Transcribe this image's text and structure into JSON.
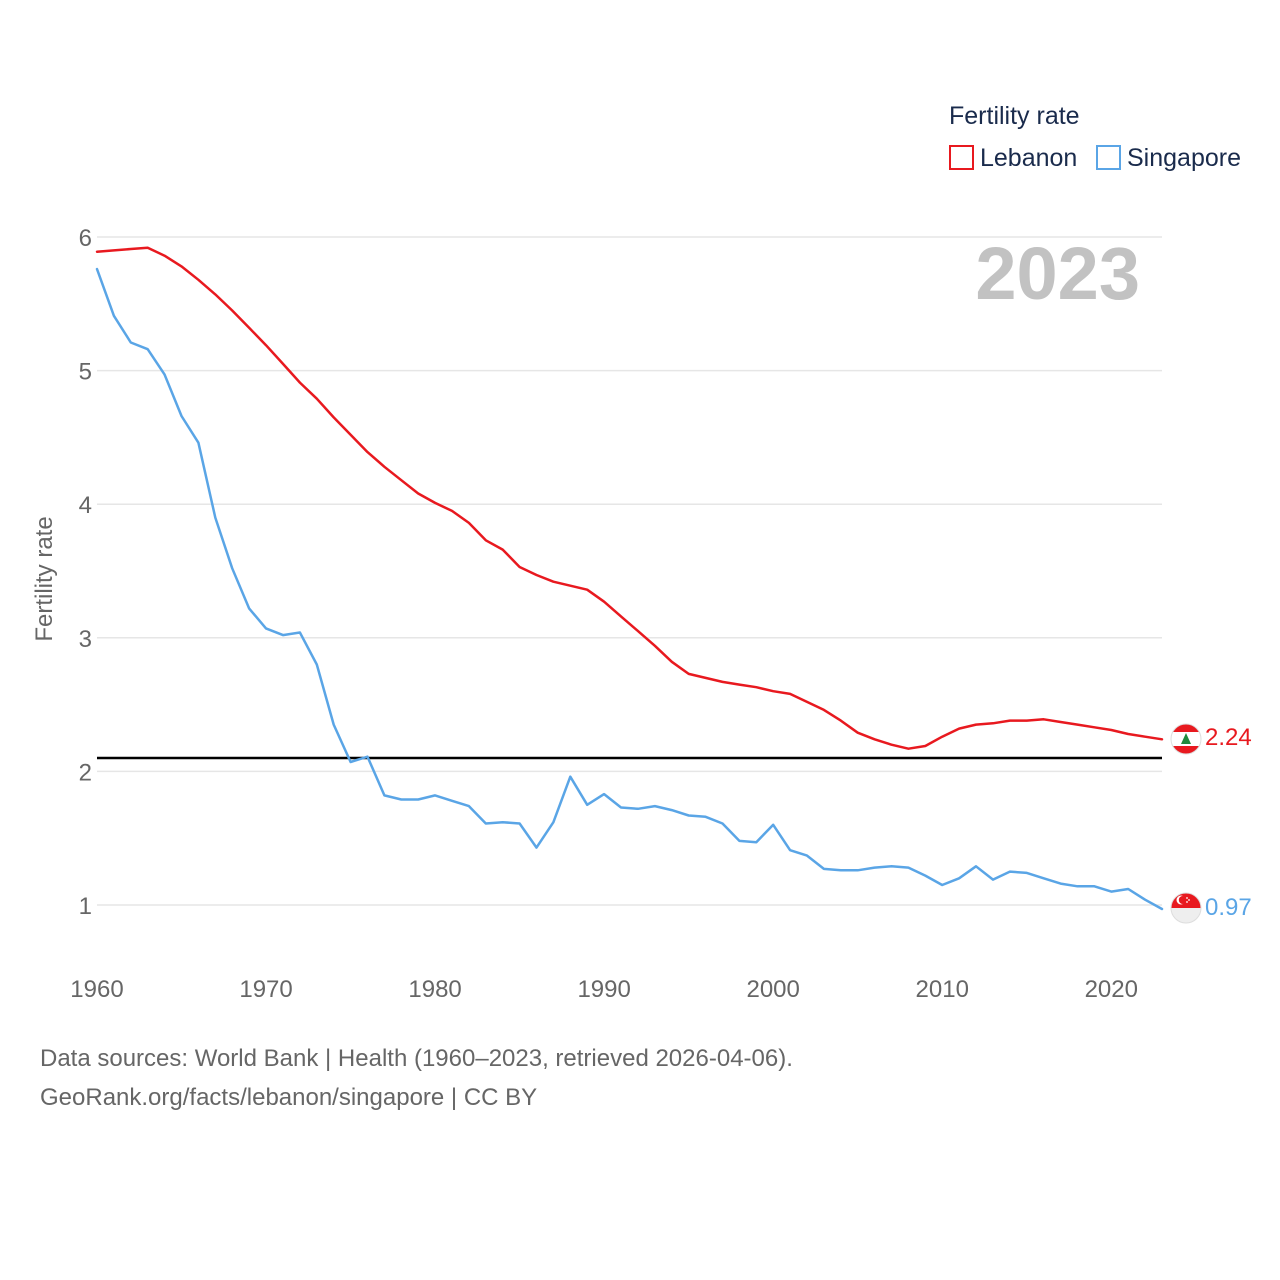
{
  "chart_data": {
    "type": "line",
    "title": "Fertility rate",
    "ylabel": "Fertility rate",
    "xlabel": "",
    "year_label": "2023",
    "xlim": [
      1960,
      2023
    ],
    "ylim": [
      0.5,
      6.1
    ],
    "x_ticks": [
      1960,
      1970,
      1980,
      1990,
      2000,
      2010,
      2020
    ],
    "y_ticks": [
      1,
      2,
      3,
      4,
      5,
      6
    ],
    "reference_line": 2.1,
    "x": [
      1960,
      1961,
      1962,
      1963,
      1964,
      1965,
      1966,
      1967,
      1968,
      1969,
      1970,
      1971,
      1972,
      1973,
      1974,
      1975,
      1976,
      1977,
      1978,
      1979,
      1980,
      1981,
      1982,
      1983,
      1984,
      1985,
      1986,
      1987,
      1988,
      1989,
      1990,
      1991,
      1992,
      1993,
      1994,
      1995,
      1996,
      1997,
      1998,
      1999,
      2000,
      2001,
      2002,
      2003,
      2004,
      2005,
      2006,
      2007,
      2008,
      2009,
      2010,
      2011,
      2012,
      2013,
      2014,
      2015,
      2016,
      2017,
      2018,
      2019,
      2020,
      2021,
      2022,
      2023
    ],
    "series": [
      {
        "name": "Lebanon",
        "color": "#e8191f",
        "end_label": "2.24",
        "values": [
          5.89,
          5.9,
          5.91,
          5.92,
          5.86,
          5.78,
          5.68,
          5.57,
          5.45,
          5.32,
          5.19,
          5.05,
          4.91,
          4.79,
          4.65,
          4.52,
          4.39,
          4.28,
          4.18,
          4.08,
          4.01,
          3.95,
          3.86,
          3.73,
          3.66,
          3.53,
          3.47,
          3.42,
          3.39,
          3.36,
          3.27,
          3.16,
          3.05,
          2.94,
          2.82,
          2.73,
          2.7,
          2.67,
          2.65,
          2.63,
          2.6,
          2.58,
          2.52,
          2.46,
          2.38,
          2.29,
          2.24,
          2.2,
          2.17,
          2.19,
          2.26,
          2.32,
          2.35,
          2.36,
          2.38,
          2.38,
          2.39,
          2.37,
          2.35,
          2.33,
          2.31,
          2.28,
          2.26,
          2.24
        ]
      },
      {
        "name": "Singapore",
        "color": "#5aa5e6",
        "end_label": "0.97",
        "values": [
          5.76,
          5.41,
          5.21,
          5.16,
          4.97,
          4.66,
          4.46,
          3.9,
          3.52,
          3.22,
          3.07,
          3.02,
          3.04,
          2.8,
          2.35,
          2.07,
          2.11,
          1.82,
          1.79,
          1.79,
          1.82,
          1.78,
          1.74,
          1.61,
          1.62,
          1.61,
          1.43,
          1.62,
          1.96,
          1.75,
          1.83,
          1.73,
          1.72,
          1.74,
          1.71,
          1.67,
          1.66,
          1.61,
          1.48,
          1.47,
          1.6,
          1.41,
          1.37,
          1.27,
          1.26,
          1.26,
          1.28,
          1.29,
          1.28,
          1.22,
          1.15,
          1.2,
          1.29,
          1.19,
          1.25,
          1.24,
          1.2,
          1.16,
          1.14,
          1.14,
          1.1,
          1.12,
          1.04,
          0.97
        ]
      }
    ]
  },
  "legend": {
    "title": "Fertility rate",
    "items": [
      "Lebanon",
      "Singapore"
    ]
  },
  "flags": {
    "lebanon": "lebanon-flag-icon",
    "singapore": "singapore-flag-icon"
  },
  "footer": {
    "source": "Data sources: World Bank | Health (1960–2023, retrieved 2026-04-06).",
    "credit": "GeoRank.org/facts/lebanon/singapore | CC BY"
  }
}
